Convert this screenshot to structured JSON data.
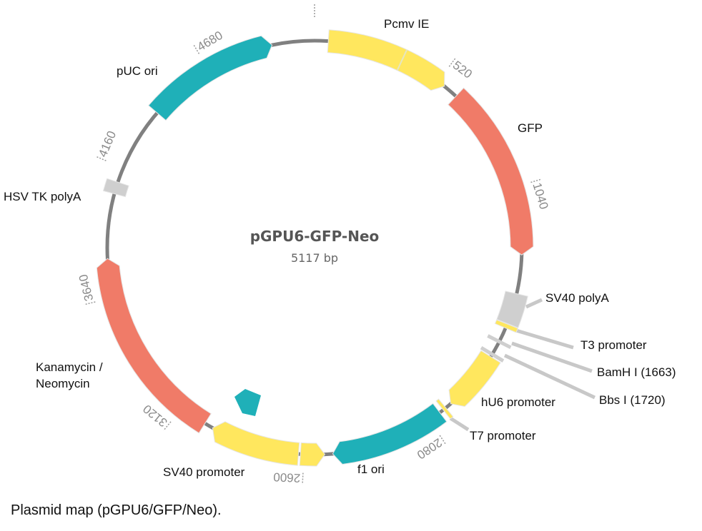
{
  "plasmid": {
    "name": "pGPU6-GFP-Neo",
    "size_label": "5117 bp",
    "length_bp": 5117
  },
  "colors": {
    "backbone": "#808080",
    "promoter": "#ffe75e",
    "origin": "#1fb0b8",
    "gene": "#f07b68",
    "polyA": "#cfcfcf",
    "tick_label": "#8a8a8a",
    "leader": "#c8c8c8"
  },
  "features": [
    {
      "name": "Pcmv IE",
      "start": 54,
      "end": 551,
      "direction": "cw",
      "color": "#ffe75e",
      "divider": 355
    },
    {
      "name": "GFP",
      "start": 611,
      "end": 1308,
      "direction": "cw",
      "color": "#f07b68"
    },
    {
      "name": "SV40 polyA",
      "start": 1462,
      "end": 1585,
      "direction": "none",
      "color": "#cfcfcf"
    },
    {
      "name": "T3 promoter",
      "start": 1587,
      "end": 1604,
      "direction": "none",
      "color": "#ffe75e"
    },
    {
      "name": "hU6 promoter",
      "start": 1731,
      "end": 1975,
      "direction": "cw",
      "color": "#ffe75e"
    },
    {
      "name": "T7 promoter",
      "start": 2000,
      "end": 2013,
      "direction": "none",
      "color": "#ffe75e"
    },
    {
      "name": "f1 ori",
      "start": 2030,
      "end": 2487,
      "direction": "cw",
      "color": "#1fb0b8"
    },
    {
      "name": "",
      "start": 2518,
      "end": 2614,
      "direction": "ccw",
      "color": "#ffe75e"
    },
    {
      "name": "SV40 promoter",
      "start": 2622,
      "end": 2977,
      "direction": "cw",
      "color": "#ffe75e"
    },
    {
      "name": "Kanamycin / Neomycin",
      "start": 3012,
      "end": 3795,
      "direction": "cw",
      "color": "#f07b68"
    },
    {
      "name": "HSV TK polyA",
      "start": 4052,
      "end": 4100,
      "direction": "none",
      "color": "#cfcfcf"
    },
    {
      "name": "pUC ori",
      "start": 4415,
      "end": 4949,
      "direction": "cw",
      "color": "#1fb0b8"
    }
  ],
  "sites": [
    {
      "name": "BamH I",
      "position": 1663,
      "label": "BamH I (1663)"
    },
    {
      "name": "Bbs I",
      "position": 1720,
      "label": "Bbs I (1720)"
    }
  ],
  "labels": {
    "pcmv": "Pcmv IE",
    "gfp": "GFP",
    "sv40_polya": "SV40 polyA",
    "t3": "T3 promoter",
    "hu6": "hU6 promoter",
    "t7": "T7 promoter",
    "f1": "f1 ori",
    "sv40_promoter": "SV40 promoter",
    "kan1": "Kanamycin /",
    "kan2": "Neomycin",
    "hsv": "HSV TK polyA",
    "puc": "pUC ori"
  },
  "ticks": [
    520,
    1040,
    2080,
    2600,
    3120,
    3640,
    4160,
    4680
  ],
  "caption": "Plasmid map (pGPU6/GFP/Neo)."
}
